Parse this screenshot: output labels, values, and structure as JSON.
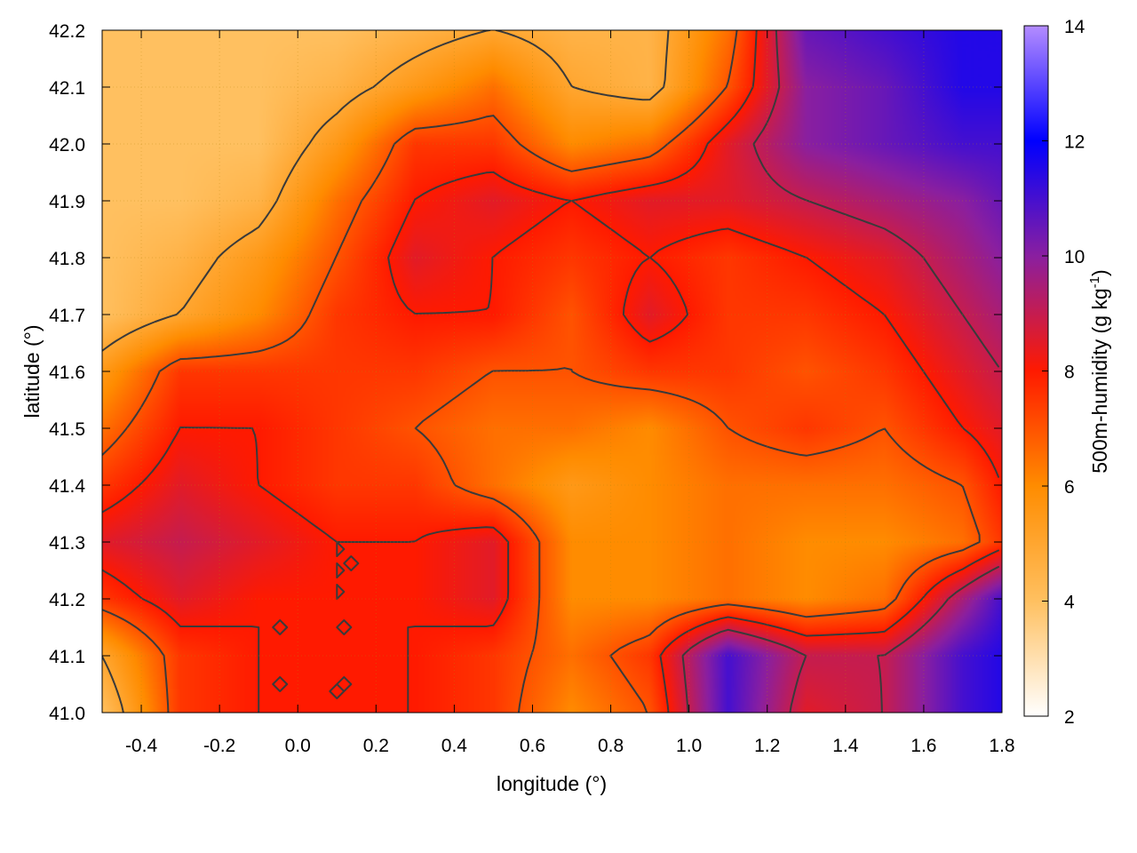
{
  "chart_data": {
    "type": "heatmap",
    "title": "",
    "xlabel": "longitude (°)",
    "ylabel": "latitude (°)",
    "colorbar": {
      "label_main": "500m-humidity (g kg",
      "label_sup": "-1",
      "label_end": ")",
      "range": [
        2,
        14
      ],
      "ticks": [
        2,
        4,
        6,
        8,
        10,
        12,
        14
      ],
      "tick_labels": [
        "2",
        "4",
        "6",
        "8",
        "10",
        "12",
        "14"
      ],
      "palette": [
        {
          "value": 2,
          "color": "#ffffff"
        },
        {
          "value": 4,
          "color": "#ffc060"
        },
        {
          "value": 6,
          "color": "#ff8c00"
        },
        {
          "value": 8,
          "color": "#ff1a00"
        },
        {
          "value": 10,
          "color": "#8a1fa0"
        },
        {
          "value": 12,
          "color": "#0000ff"
        },
        {
          "value": 14,
          "color": "#b48cff"
        }
      ]
    },
    "xlim": [
      -0.5,
      1.8
    ],
    "ylim": [
      41.0,
      42.2
    ],
    "x_ticks": [
      -0.4,
      -0.2,
      0.0,
      0.2,
      0.4,
      0.6,
      0.8,
      1.0,
      1.2,
      1.4,
      1.6,
      1.8
    ],
    "x_tick_labels": [
      "-0.4",
      "-0.2",
      "0.0",
      "0.2",
      "0.4",
      "0.6",
      "0.8",
      "1.0",
      "1.2",
      "1.4",
      "1.6",
      "1.8"
    ],
    "y_ticks": [
      41.0,
      41.1,
      41.2,
      41.3,
      41.4,
      41.5,
      41.6,
      41.7,
      41.8,
      41.9,
      42.0,
      42.1,
      42.2
    ],
    "y_tick_labels": [
      "41.0",
      "41.1",
      "41.2",
      "41.3",
      "41.4",
      "41.5",
      "41.6",
      "41.7",
      "41.8",
      "41.9",
      "42.0",
      "42.1",
      "42.2"
    ],
    "grid": true,
    "contour_color": "#3a3a3a",
    "lon": [
      -0.5,
      -0.3,
      -0.1,
      0.1,
      0.3,
      0.5,
      0.7,
      0.9,
      1.1,
      1.3,
      1.5,
      1.7,
      1.8
    ],
    "lat": [
      42.2,
      42.1,
      42.0,
      41.9,
      41.8,
      41.7,
      41.6,
      41.5,
      41.4,
      41.3,
      41.2,
      41.1,
      41.0
    ],
    "humidity": [
      [
        4.0,
        4.0,
        4.0,
        4.0,
        4.5,
        5.0,
        4.5,
        4.5,
        6.5,
        10.5,
        11.0,
        11.5,
        11.5
      ],
      [
        4.0,
        4.0,
        4.0,
        4.5,
        5.5,
        6.5,
        5.0,
        4.5,
        7.0,
        10.0,
        10.5,
        11.5,
        11.5
      ],
      [
        4.0,
        4.0,
        4.0,
        5.5,
        7.5,
        7.5,
        6.0,
        6.5,
        8.5,
        10.0,
        10.5,
        11.0,
        11.0
      ],
      [
        4.0,
        4.0,
        4.5,
        6.5,
        8.0,
        8.5,
        8.0,
        8.5,
        8.5,
        9.0,
        9.5,
        10.0,
        10.5
      ],
      [
        4.0,
        4.5,
        5.5,
        7.0,
        8.5,
        8.0,
        7.5,
        8.0,
        7.5,
        8.0,
        8.5,
        9.5,
        10.0
      ],
      [
        4.0,
        5.0,
        6.0,
        7.5,
        8.0,
        8.0,
        7.0,
        8.5,
        7.5,
        7.5,
        8.0,
        9.0,
        9.5
      ],
      [
        5.5,
        7.5,
        7.5,
        7.5,
        7.5,
        7.0,
        7.0,
        7.5,
        7.5,
        7.0,
        7.5,
        8.5,
        9.0
      ],
      [
        6.5,
        8.0,
        8.0,
        7.5,
        7.0,
        6.5,
        6.5,
        6.0,
        7.0,
        7.5,
        7.0,
        8.0,
        8.5
      ],
      [
        7.5,
        8.5,
        8.0,
        7.5,
        7.5,
        6.5,
        5.5,
        6.0,
        6.5,
        6.5,
        6.5,
        7.0,
        8.0
      ],
      [
        8.5,
        9.0,
        8.5,
        8.0,
        8.0,
        8.5,
        6.0,
        6.0,
        6.5,
        6.0,
        6.0,
        6.5,
        7.5
      ],
      [
        7.5,
        8.5,
        8.0,
        8.0,
        8.0,
        8.5,
        6.0,
        6.0,
        6.5,
        6.0,
        6.5,
        9.5,
        11.0
      ],
      [
        5.0,
        7.5,
        8.0,
        8.0,
        8.0,
        7.5,
        6.5,
        7.5,
        11.0,
        9.0,
        9.0,
        11.0,
        11.5
      ],
      [
        4.0,
        7.5,
        8.0,
        8.0,
        8.0,
        7.5,
        6.0,
        7.0,
        11.0,
        8.5,
        9.0,
        11.0,
        11.5
      ]
    ],
    "contour_levels": [
      5,
      7,
      8,
      9
    ]
  }
}
